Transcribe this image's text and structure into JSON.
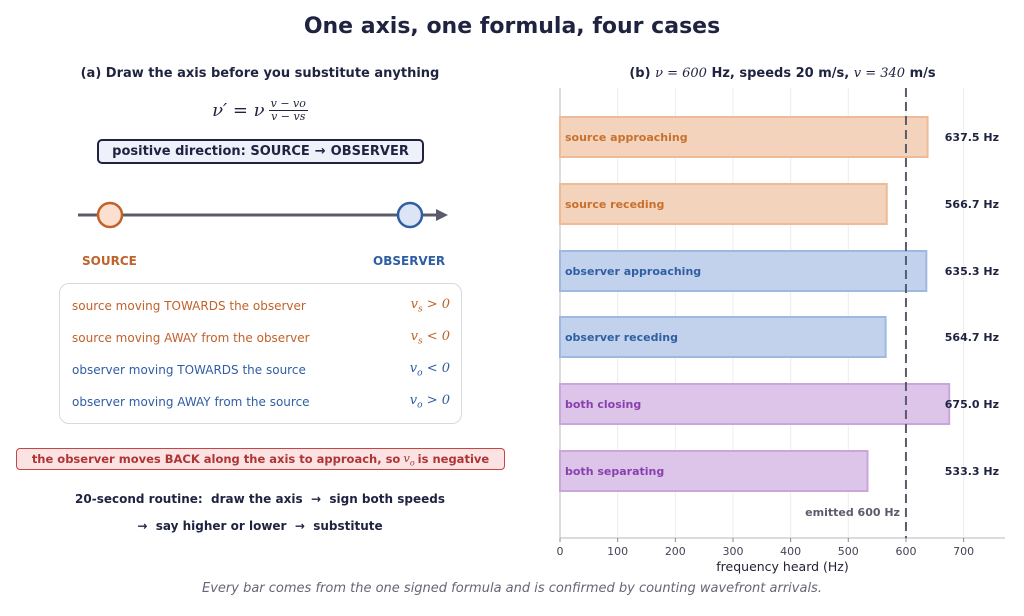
{
  "title": "One axis, one formula, four cases",
  "caption": "Every bar comes from the one signed formula and is confirmed by counting wavefront arrivals.",
  "panel_a": {
    "title": "(a) Draw the axis before you substitute anything",
    "formula": {
      "lhs": "ν′ = ν",
      "numerator": "v − vo",
      "denominator": "v − vs"
    },
    "direction": {
      "prefix": "positive direction: SOURCE",
      "arrow": "→",
      "suffix": "OBSERVER"
    },
    "source_label": "SOURCE",
    "observer_label": "OBSERVER",
    "rules": [
      {
        "text": "source moving TOWARDS the observer",
        "symbol": "v",
        "sub": "s",
        "relation": "> 0",
        "color": "#c0622a"
      },
      {
        "text": "source moving AWAY from the observer",
        "symbol": "v",
        "sub": "s",
        "relation": "< 0",
        "color": "#c0622a"
      },
      {
        "text": "observer moving TOWARDS the source",
        "symbol": "v",
        "sub": "o",
        "relation": "< 0",
        "color": "#2f5ea3"
      },
      {
        "text": "observer moving AWAY from the source",
        "symbol": "v",
        "sub": "o",
        "relation": "> 0",
        "color": "#2f5ea3"
      }
    ],
    "warning": {
      "text": "the observer moves BACK along the axis to approach, so",
      "symbol": "v",
      "sub": "o",
      "tail": "is negative"
    },
    "routine_line1": "20-second routine:  draw the axis  →  sign both speeds",
    "routine_line2": "→  say higher or lower  →  substitute"
  },
  "panel_b": {
    "title_prefix": "(b)",
    "title_nu": "ν = 600",
    "title_mid": "Hz, speeds 20 m/s,",
    "title_v": "v = 340",
    "title_suffix": "m/s"
  },
  "chart_data": {
    "type": "bar",
    "orientation": "horizontal",
    "categories": [
      "source approaching",
      "source receding",
      "observer approaching",
      "observer receding",
      "both closing",
      "both separating"
    ],
    "values": [
      637.5,
      566.7,
      635.3,
      564.7,
      675.0,
      533.3
    ],
    "value_labels": [
      "637.5 Hz",
      "566.7 Hz",
      "635.3 Hz",
      "564.7 Hz",
      "675.0 Hz",
      "533.3 Hz"
    ],
    "colors": {
      "source": {
        "fill": "#f4d3bc",
        "stroke": "#eebb96",
        "text": "#c8702e"
      },
      "observer": {
        "fill": "#c3d2ec",
        "stroke": "#9fb8e0",
        "text": "#2f5ea3"
      },
      "both": {
        "fill": "#dcc5e8",
        "stroke": "#c9a6db",
        "text": "#8a3fb0"
      }
    },
    "bar_groups": [
      "source",
      "source",
      "observer",
      "observer",
      "both",
      "both"
    ],
    "xlabel": "frequency heard (Hz)",
    "xlim": [
      0,
      770
    ],
    "xticks": [
      0,
      100,
      200,
      300,
      400,
      500,
      600,
      700
    ],
    "reference_line": {
      "value": 600,
      "label": "emitted 600 Hz"
    },
    "grid": "vertical"
  }
}
